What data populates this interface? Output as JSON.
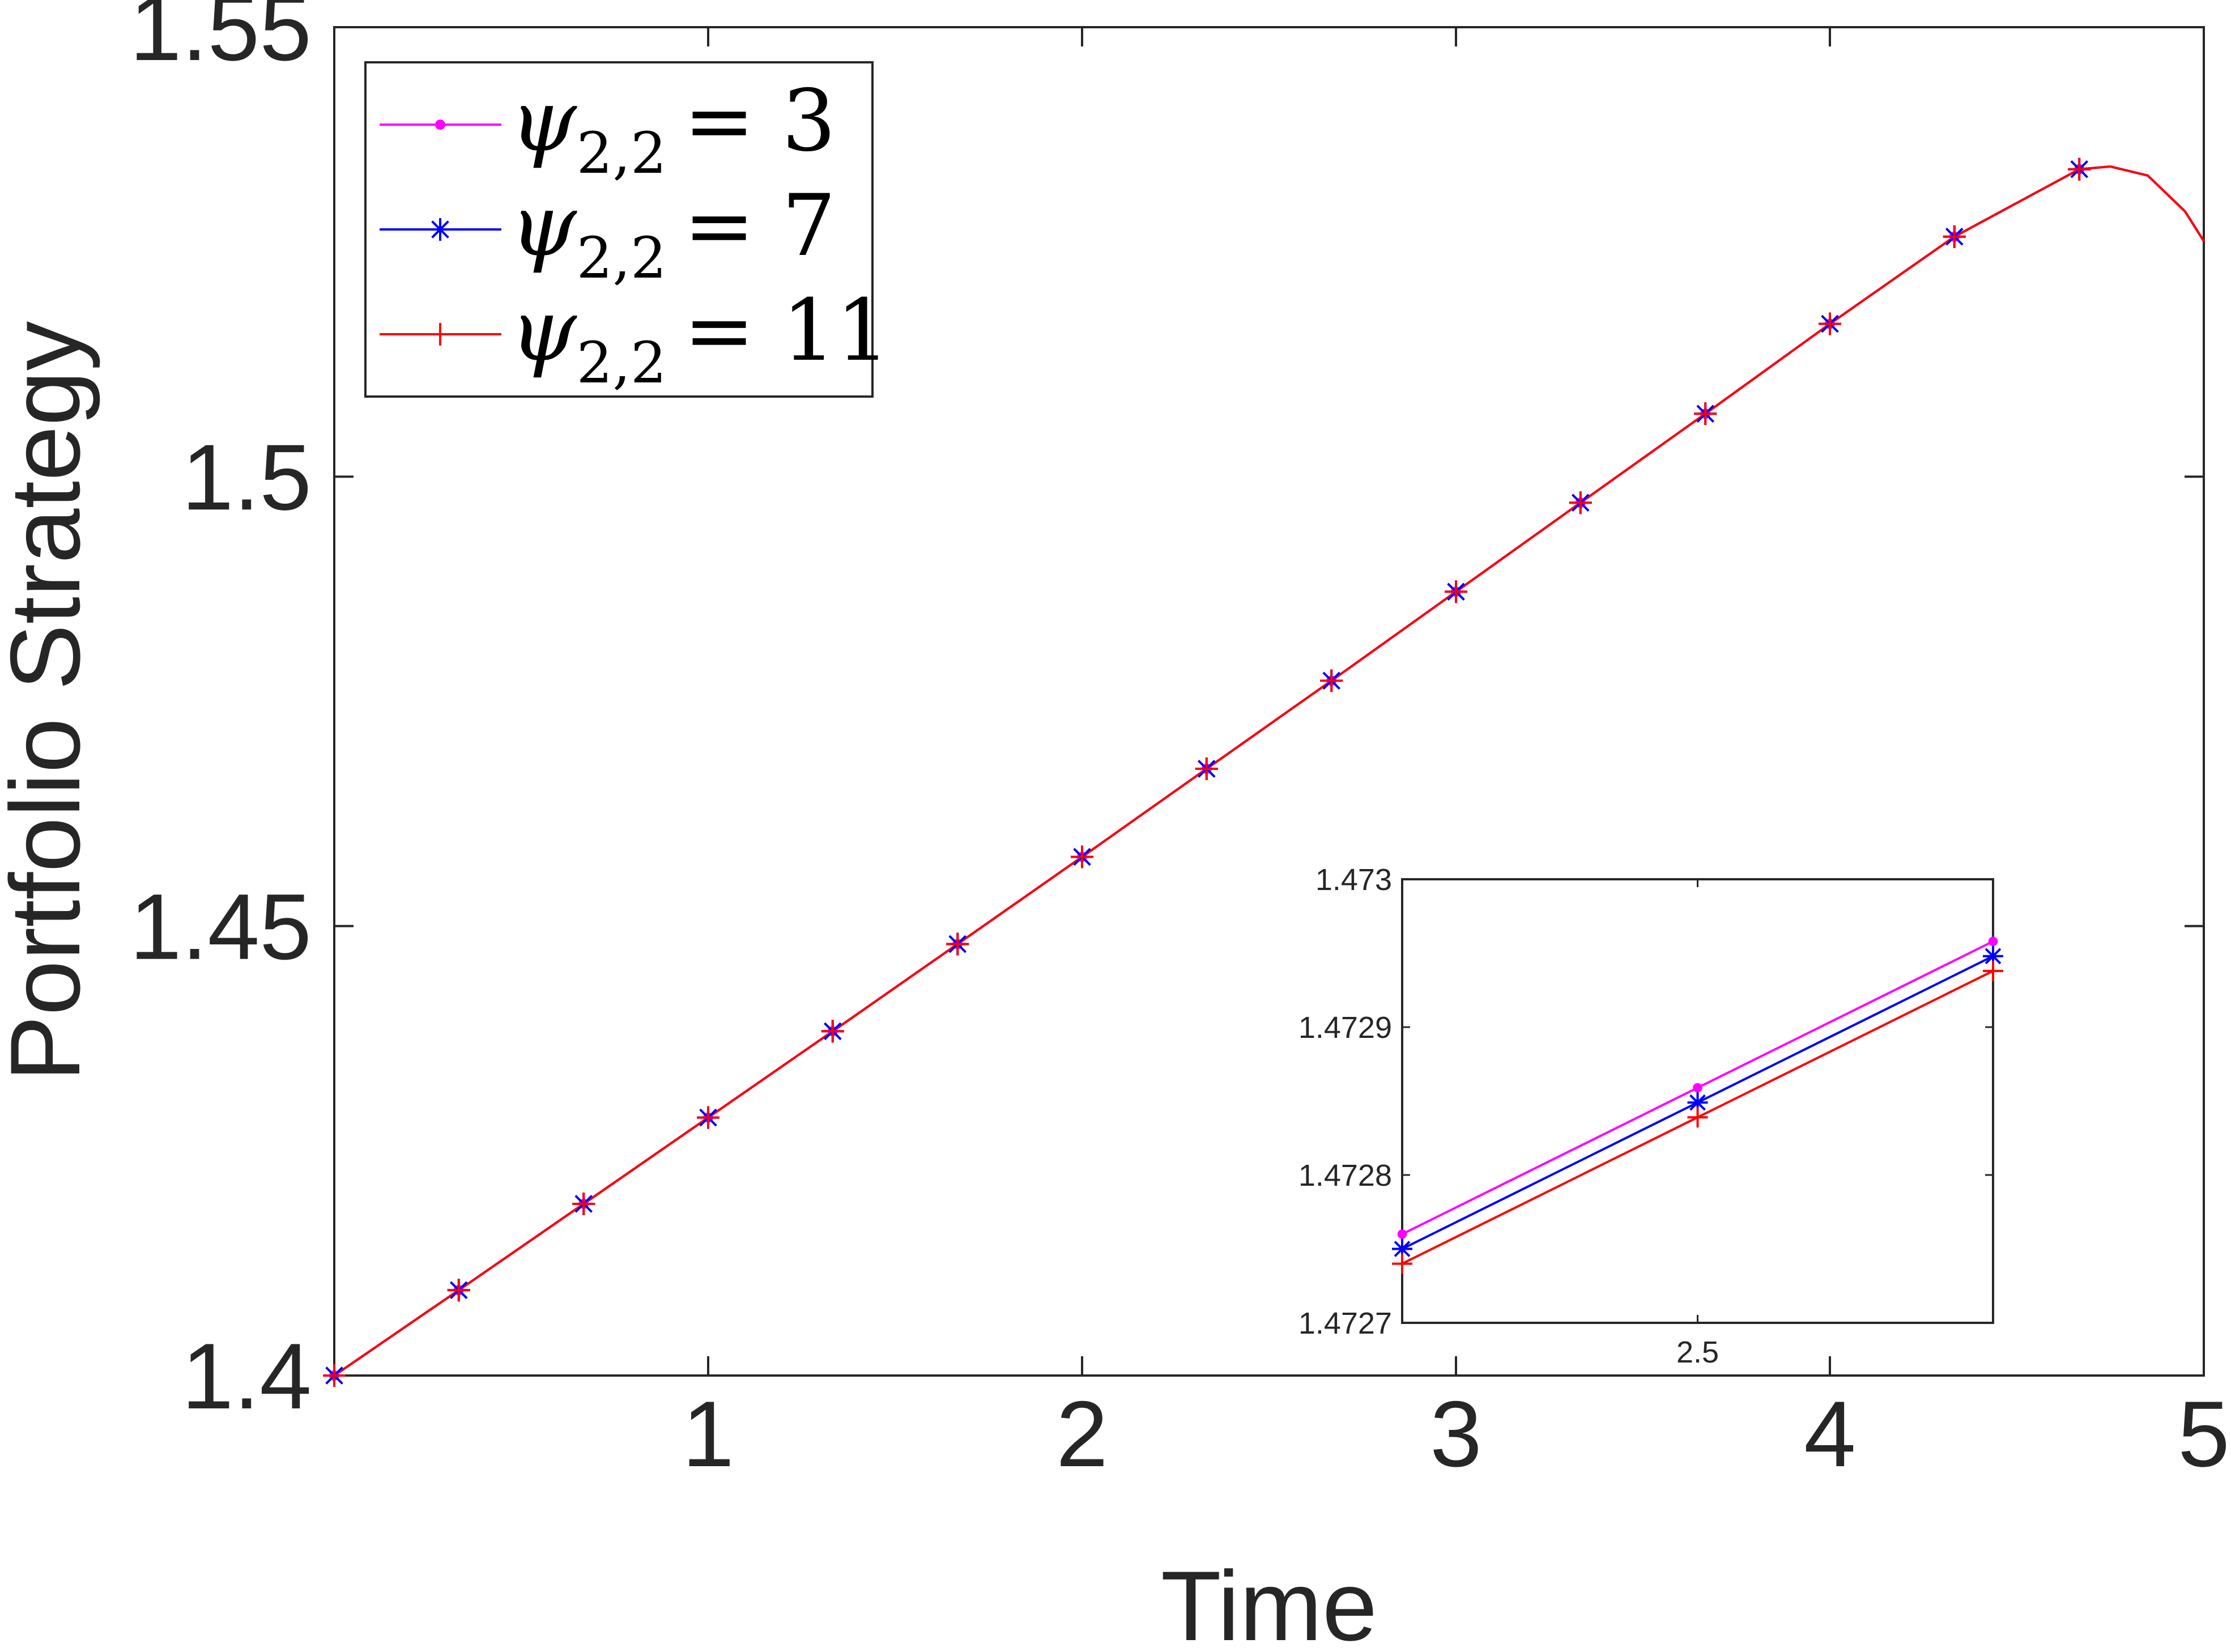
{
  "chart_data": [
    {
      "type": "line",
      "title": "",
      "xlabel": "Time",
      "ylabel": "Portfolio Strategy",
      "xlim": [
        0,
        5
      ],
      "ylim": [
        1.4,
        1.55
      ],
      "xticks": [
        1,
        2,
        3,
        4,
        5
      ],
      "xtick_labels": [
        "1",
        "2",
        "3",
        "4",
        "5"
      ],
      "yticks": [
        1.4,
        1.45,
        1.5,
        1.55
      ],
      "ytick_labels": [
        "1.4",
        "1.45",
        "1.5",
        "1.55"
      ],
      "grid": false,
      "legend_position": "top-left",
      "series": [
        {
          "name": "ψ2,2 = 3",
          "legend_symbol": "ψ",
          "legend_subscript": "2,2",
          "legend_value": "= 3",
          "color": "#ff00ff",
          "marker": "dot",
          "x": [
            0,
            0.333,
            0.667,
            1.0,
            1.333,
            1.667,
            2.0,
            2.333,
            2.667,
            3.0,
            3.333,
            3.667,
            4.0,
            4.333,
            4.667
          ],
          "y": [
            1.4,
            1.4095,
            1.4191,
            1.4287,
            1.4383,
            1.448,
            1.4577,
            1.4675,
            1.4773,
            1.4872,
            1.4971,
            1.507,
            1.517,
            1.5267,
            1.5342
          ]
        },
        {
          "name": "ψ2,2 = 7",
          "legend_symbol": "ψ",
          "legend_subscript": "2,2",
          "legend_value": "= 7",
          "color": "#0000ff",
          "marker": "asterisk",
          "x": [
            0,
            0.333,
            0.667,
            1.0,
            1.333,
            1.667,
            2.0,
            2.333,
            2.667,
            3.0,
            3.333,
            3.667,
            4.0,
            4.333,
            4.667
          ],
          "y": [
            1.4,
            1.4095,
            1.4191,
            1.4287,
            1.4383,
            1.448,
            1.4577,
            1.4675,
            1.4773,
            1.4872,
            1.4971,
            1.507,
            1.517,
            1.5267,
            1.5342
          ]
        },
        {
          "name": "ψ2,2 = 11",
          "legend_symbol": "ψ",
          "legend_subscript": "2,2",
          "legend_value": "= 11",
          "color": "#ff0000",
          "marker": "plus",
          "x": [
            0,
            0.333,
            0.667,
            1.0,
            1.333,
            1.667,
            2.0,
            2.333,
            2.667,
            3.0,
            3.333,
            3.667,
            4.0,
            4.333,
            4.667
          ],
          "y": [
            1.4,
            1.4095,
            1.4191,
            1.4287,
            1.4383,
            1.448,
            1.4577,
            1.4675,
            1.4773,
            1.4872,
            1.4971,
            1.507,
            1.517,
            1.5267,
            1.5342
          ]
        }
      ],
      "line_only_points": {
        "x": [
          4.75,
          4.85,
          4.95,
          5.0
        ],
        "y": [
          1.5345,
          1.5335,
          1.5295,
          1.5262
        ]
      }
    },
    {
      "type": "line",
      "title": "",
      "xlabel": "",
      "ylabel": "",
      "role": "inset zoom",
      "xlim": [
        2.4,
        2.6
      ],
      "ylim": [
        1.4727,
        1.473
      ],
      "xticks": [
        2.5
      ],
      "xtick_labels": [
        "2.5"
      ],
      "yticks": [
        1.4727,
        1.4728,
        1.4729,
        1.473
      ],
      "ytick_labels": [
        "1.4727",
        "1.4728",
        "1.4729",
        "1.473"
      ],
      "grid": false,
      "series": [
        {
          "color": "#ff00ff",
          "marker": "dot",
          "x": [
            2.4,
            2.5,
            2.6
          ],
          "y": [
            1.47276,
            1.472859,
            1.472958
          ]
        },
        {
          "color": "#0000ff",
          "marker": "asterisk",
          "x": [
            2.4,
            2.5,
            2.6
          ],
          "y": [
            1.47275,
            1.472849,
            1.472948
          ]
        },
        {
          "color": "#ff0000",
          "marker": "plus",
          "x": [
            2.4,
            2.5,
            2.6
          ],
          "y": [
            1.47274,
            1.472839,
            1.472938
          ]
        }
      ]
    }
  ]
}
